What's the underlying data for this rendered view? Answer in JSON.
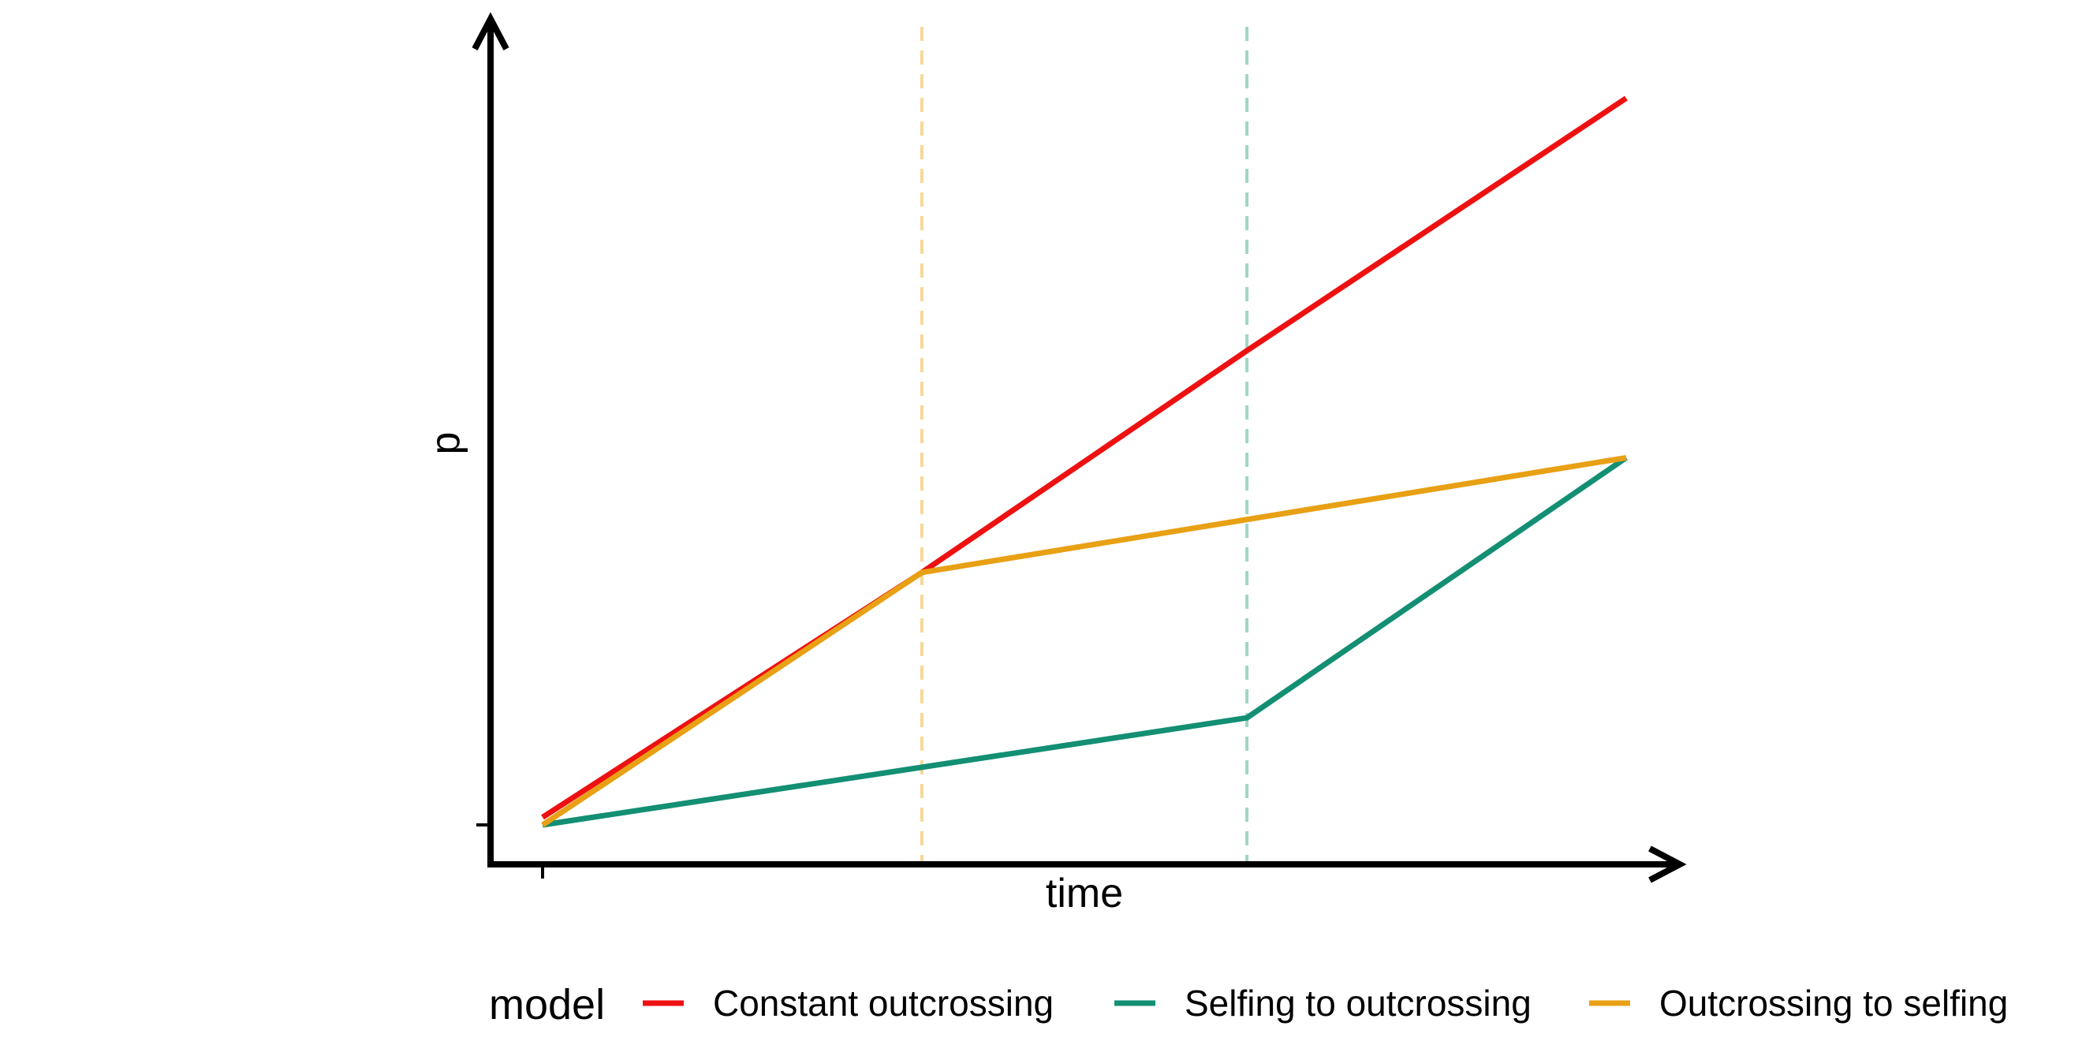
{
  "chart_data": {
    "type": "line",
    "title": "",
    "xlabel": "time",
    "ylabel": "p",
    "x_ticks": [
      ""
    ],
    "y_ticks": [
      ""
    ],
    "xlim": [
      0,
      1
    ],
    "ylim": [
      0,
      1
    ],
    "grid": false,
    "axis_arrows": true,
    "series": [
      {
        "name": "Constant outcrossing",
        "color": "#EE1111",
        "points": [
          [
            0,
            0.01
          ],
          [
            0.35,
            0.33
          ],
          [
            0.65,
            0.62
          ],
          [
            1.0,
            0.95
          ]
        ]
      },
      {
        "name": "Selfing to outcrossing",
        "color": "#138F73",
        "points": [
          [
            0,
            0
          ],
          [
            0.65,
            0.14
          ],
          [
            1.0,
            0.48
          ]
        ]
      },
      {
        "name": "Outcrossing to selfing",
        "color": "#E8A014",
        "points": [
          [
            0,
            0
          ],
          [
            0.35,
            0.33
          ],
          [
            1.0,
            0.48
          ]
        ]
      }
    ],
    "reference_lines": [
      {
        "x": 0.35,
        "color": "#F7D898",
        "style": "dashed"
      },
      {
        "x": 0.65,
        "color": "#9FD6C4",
        "style": "dashed"
      }
    ],
    "legend": {
      "title": "model",
      "placement": "bottom"
    }
  }
}
